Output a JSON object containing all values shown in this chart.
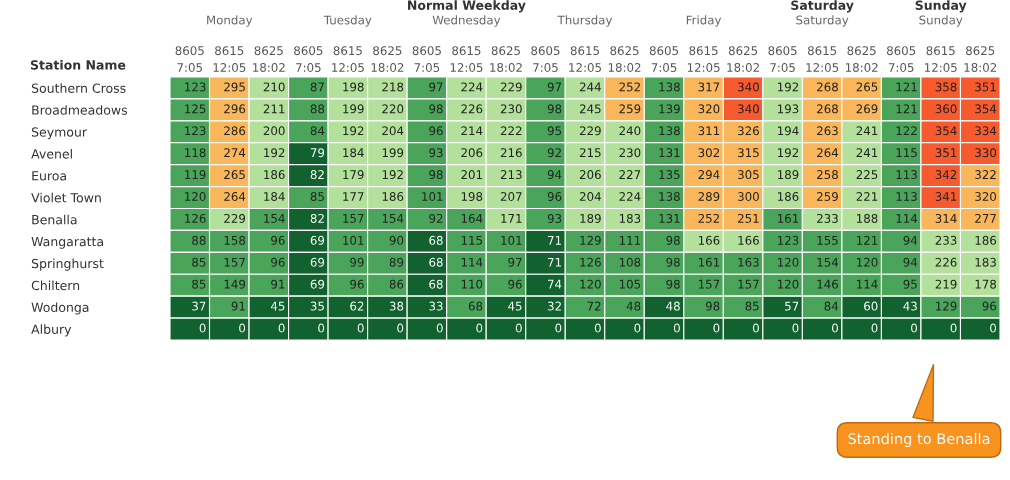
{
  "chart_data": {
    "type": "heatmap",
    "ylabel": "Station Name",
    "categories": [
      "8605\n7:05",
      "8615\n12:05",
      "8625\n18:02",
      "8605\n7:05",
      "8615\n12:05",
      "8625\n18:02",
      "8605\n7:05",
      "8615\n12:05",
      "8625\n18:02",
      "8605\n7:05",
      "8615\n12:05",
      "8625\n18:02",
      "8605\n7:05",
      "8615\n12:05",
      "8625\n18:02",
      "8605\n7:05",
      "8615\n12:05",
      "8625\n18:02",
      "8605\n7:05",
      "8615\n12:05",
      "8625\n18:02"
    ],
    "y_categories": [
      "Southern Cross",
      "Broadmeadows",
      "Seymour",
      "Avenel",
      "Euroa",
      "Violet Town",
      "Benalla",
      "Wangaratta",
      "Springhurst",
      "Chiltern",
      "Wodonga",
      "Albury"
    ],
    "cells": [
      [
        123,
        295,
        210,
        87,
        198,
        218,
        97,
        224,
        229,
        97,
        244,
        252,
        138,
        317,
        340,
        192,
        268,
        265,
        121,
        358,
        351
      ],
      [
        125,
        296,
        211,
        88,
        199,
        220,
        98,
        226,
        230,
        98,
        245,
        259,
        139,
        320,
        340,
        193,
        268,
        269,
        121,
        360,
        354
      ],
      [
        123,
        286,
        200,
        84,
        192,
        204,
        96,
        214,
        222,
        95,
        229,
        240,
        138,
        311,
        326,
        194,
        263,
        241,
        122,
        354,
        334
      ],
      [
        118,
        274,
        192,
        79,
        184,
        199,
        93,
        206,
        216,
        92,
        215,
        230,
        131,
        302,
        315,
        192,
        264,
        241,
        115,
        351,
        330
      ],
      [
        119,
        265,
        186,
        82,
        179,
        192,
        98,
        201,
        213,
        94,
        206,
        227,
        135,
        294,
        305,
        189,
        258,
        225,
        113,
        342,
        322
      ],
      [
        120,
        264,
        184,
        85,
        177,
        186,
        101,
        198,
        207,
        96,
        204,
        224,
        138,
        289,
        300,
        186,
        259,
        221,
        113,
        341,
        320
      ],
      [
        126,
        229,
        154,
        82,
        157,
        154,
        92,
        164,
        171,
        93,
        189,
        183,
        131,
        252,
        251,
        161,
        233,
        188,
        114,
        314,
        277
      ],
      [
        88,
        158,
        96,
        69,
        101,
        90,
        68,
        115,
        101,
        71,
        129,
        111,
        98,
        166,
        166,
        123,
        155,
        121,
        94,
        233,
        186
      ],
      [
        85,
        157,
        96,
        69,
        99,
        89,
        68,
        114,
        97,
        71,
        126,
        108,
        98,
        161,
        163,
        120,
        154,
        120,
        94,
        226,
        183
      ],
      [
        85,
        149,
        91,
        69,
        96,
        86,
        68,
        110,
        96,
        74,
        120,
        105,
        98,
        157,
        157,
        120,
        146,
        114,
        95,
        219,
        178
      ],
      [
        37,
        91,
        45,
        35,
        62,
        38,
        33,
        68,
        45,
        32,
        72,
        48,
        48,
        98,
        85,
        57,
        84,
        60,
        43,
        129,
        96
      ],
      [
        0,
        0,
        0,
        0,
        0,
        0,
        0,
        0,
        0,
        0,
        0,
        0,
        0,
        0,
        0,
        0,
        0,
        0,
        0,
        0,
        0
      ]
    ],
    "colors": [
      [
        "#4aa55a",
        "#f9b65a",
        "#b3e09a",
        "#4aa55a",
        "#b3e09a",
        "#b3e09a",
        "#4aa55a",
        "#b3e09a",
        "#b3e09a",
        "#4aa55a",
        "#b3e09a",
        "#f9b65a",
        "#4aa55a",
        "#f9b65a",
        "#f65a2e",
        "#b3e09a",
        "#f9b65a",
        "#f9b65a",
        "#4aa55a",
        "#f65a2e",
        "#f65a2e"
      ],
      [
        "#4aa55a",
        "#f9b65a",
        "#b3e09a",
        "#4aa55a",
        "#b3e09a",
        "#b3e09a",
        "#4aa55a",
        "#b3e09a",
        "#b3e09a",
        "#4aa55a",
        "#b3e09a",
        "#f9b65a",
        "#4aa55a",
        "#f9b65a",
        "#f65a2e",
        "#b3e09a",
        "#f9b65a",
        "#f9b65a",
        "#4aa55a",
        "#f65a2e",
        "#f65a2e"
      ],
      [
        "#4aa55a",
        "#f9b65a",
        "#b3e09a",
        "#4aa55a",
        "#b3e09a",
        "#b3e09a",
        "#4aa55a",
        "#b3e09a",
        "#b3e09a",
        "#4aa55a",
        "#b3e09a",
        "#b3e09a",
        "#4aa55a",
        "#f9b65a",
        "#f9b65a",
        "#b3e09a",
        "#f9b65a",
        "#b3e09a",
        "#4aa55a",
        "#f65a2e",
        "#f65a2e"
      ],
      [
        "#4aa55a",
        "#f9b65a",
        "#b3e09a",
        "#11622f",
        "#b3e09a",
        "#b3e09a",
        "#4aa55a",
        "#b3e09a",
        "#b3e09a",
        "#4aa55a",
        "#b3e09a",
        "#b3e09a",
        "#4aa55a",
        "#f9b65a",
        "#f9b65a",
        "#b3e09a",
        "#f9b65a",
        "#b3e09a",
        "#4aa55a",
        "#f65a2e",
        "#f65a2e"
      ],
      [
        "#4aa55a",
        "#f9b65a",
        "#b3e09a",
        "#11622f",
        "#b3e09a",
        "#b3e09a",
        "#4aa55a",
        "#b3e09a",
        "#b3e09a",
        "#4aa55a",
        "#b3e09a",
        "#b3e09a",
        "#4aa55a",
        "#f9b65a",
        "#f9b65a",
        "#b3e09a",
        "#f9b65a",
        "#b3e09a",
        "#4aa55a",
        "#f65a2e",
        "#f9b65a"
      ],
      [
        "#4aa55a",
        "#f9b65a",
        "#b3e09a",
        "#4aa55a",
        "#b3e09a",
        "#b3e09a",
        "#4aa55a",
        "#b3e09a",
        "#b3e09a",
        "#4aa55a",
        "#b3e09a",
        "#b3e09a",
        "#4aa55a",
        "#f9b65a",
        "#f9b65a",
        "#b3e09a",
        "#f9b65a",
        "#b3e09a",
        "#4aa55a",
        "#f65a2e",
        "#f9b65a"
      ],
      [
        "#4aa55a",
        "#b3e09a",
        "#4aa55a",
        "#11622f",
        "#4aa55a",
        "#4aa55a",
        "#4aa55a",
        "#4aa55a",
        "#b3e09a",
        "#4aa55a",
        "#b3e09a",
        "#b3e09a",
        "#4aa55a",
        "#f9b65a",
        "#f9b65a",
        "#4aa55a",
        "#b3e09a",
        "#b3e09a",
        "#4aa55a",
        "#f9b65a",
        "#f9b65a"
      ],
      [
        "#4aa55a",
        "#4aa55a",
        "#4aa55a",
        "#11622f",
        "#4aa55a",
        "#4aa55a",
        "#11622f",
        "#4aa55a",
        "#4aa55a",
        "#11622f",
        "#4aa55a",
        "#4aa55a",
        "#4aa55a",
        "#b3e09a",
        "#b3e09a",
        "#4aa55a",
        "#4aa55a",
        "#4aa55a",
        "#4aa55a",
        "#b3e09a",
        "#b3e09a"
      ],
      [
        "#4aa55a",
        "#4aa55a",
        "#4aa55a",
        "#11622f",
        "#4aa55a",
        "#4aa55a",
        "#11622f",
        "#4aa55a",
        "#4aa55a",
        "#11622f",
        "#4aa55a",
        "#4aa55a",
        "#4aa55a",
        "#4aa55a",
        "#4aa55a",
        "#4aa55a",
        "#4aa55a",
        "#4aa55a",
        "#4aa55a",
        "#b3e09a",
        "#b3e09a"
      ],
      [
        "#4aa55a",
        "#4aa55a",
        "#4aa55a",
        "#11622f",
        "#4aa55a",
        "#4aa55a",
        "#11622f",
        "#4aa55a",
        "#4aa55a",
        "#11622f",
        "#4aa55a",
        "#4aa55a",
        "#4aa55a",
        "#4aa55a",
        "#4aa55a",
        "#4aa55a",
        "#4aa55a",
        "#4aa55a",
        "#4aa55a",
        "#b3e09a",
        "#b3e09a"
      ],
      [
        "#11622f",
        "#4aa55a",
        "#11622f",
        "#11622f",
        "#11622f",
        "#11622f",
        "#11622f",
        "#4aa55a",
        "#11622f",
        "#11622f",
        "#4aa55a",
        "#4aa55a",
        "#11622f",
        "#4aa55a",
        "#4aa55a",
        "#11622f",
        "#4aa55a",
        "#11622f",
        "#11622f",
        "#4aa55a",
        "#4aa55a"
      ],
      [
        "#11622f",
        "#11622f",
        "#11622f",
        "#11622f",
        "#11622f",
        "#11622f",
        "#11622f",
        "#11622f",
        "#11622f",
        "#11622f",
        "#11622f",
        "#11622f",
        "#11622f",
        "#11622f",
        "#11622f",
        "#11622f",
        "#11622f",
        "#11622f",
        "#11622f",
        "#11622f",
        "#11622f"
      ]
    ],
    "data_labels": true,
    "annotations": [
      "Normal Weekday",
      "Saturday",
      "Sunday",
      "Monday",
      "Tuesday",
      "Wednesday",
      "Thursday",
      "Friday",
      "Saturday",
      "Sunday",
      "Standing to Benalla"
    ]
  }
}
